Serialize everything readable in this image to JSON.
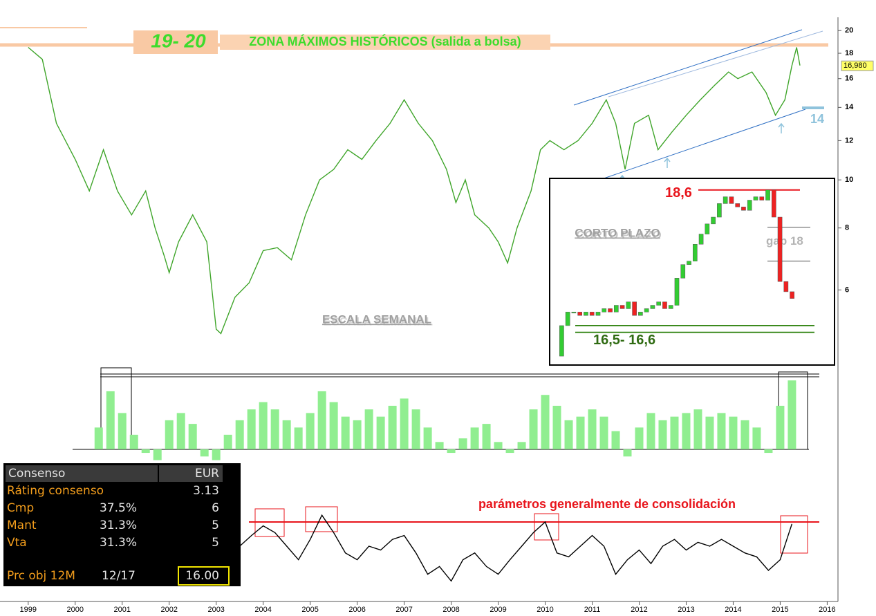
{
  "chart_data": [
    {
      "type": "line",
      "log_scale": true,
      "color": "#3fa52a",
      "x": [
        1999.0,
        1999.3,
        1999.6,
        2000.0,
        2000.3,
        2000.6,
        2000.9,
        2001.2,
        2001.5,
        2001.7,
        2001.9,
        2002.0,
        2002.2,
        2002.5,
        2002.8,
        2003.0,
        2003.1,
        2003.4,
        2003.7,
        2004.0,
        2004.3,
        2004.6,
        2004.9,
        2005.2,
        2005.5,
        2005.8,
        2006.1,
        2006.4,
        2006.7,
        2007.0,
        2007.3,
        2007.6,
        2007.9,
        2008.1,
        2008.3,
        2008.5,
        2008.8,
        2009.0,
        2009.2,
        2009.4,
        2009.7,
        2009.9,
        2010.1,
        2010.4,
        2010.7,
        2011.0,
        2011.3,
        2011.5,
        2011.7,
        2011.9,
        2012.2,
        2012.4,
        2012.7,
        2013.0,
        2013.3,
        2013.6,
        2013.9,
        2014.1,
        2014.4,
        2014.7,
        2014.9,
        2015.1,
        2015.25,
        2015.35,
        2015.42
      ],
      "values": [
        18.5,
        17.5,
        13,
        11,
        9.5,
        11.5,
        9.5,
        8.5,
        9.5,
        8,
        7,
        6.5,
        7.5,
        8.5,
        7.5,
        5,
        4.9,
        5.8,
        6.2,
        7.2,
        7.3,
        6.9,
        8.5,
        10,
        10.5,
        11.5,
        11,
        12,
        13,
        14.5,
        13,
        12,
        10.5,
        9,
        10,
        8.5,
        8,
        7.5,
        6.8,
        8,
        9.5,
        11.5,
        12,
        11.5,
        12,
        13,
        14.5,
        13,
        10.5,
        13,
        13.5,
        11.5,
        12.5,
        13.5,
        14.5,
        15.5,
        16.5,
        16,
        16.5,
        15,
        13.5,
        14.5,
        17,
        18.5,
        17
      ],
      "xlim": [
        1998.4,
        2016.2
      ],
      "xticks": [
        1999,
        2000,
        2001,
        2002,
        2003,
        2004,
        2005,
        2006,
        2007,
        2008,
        2009,
        2010,
        2011,
        2012,
        2013,
        2014,
        2015,
        2016
      ],
      "ylim": [
        4.5,
        21
      ],
      "yticks": [
        6,
        8,
        10,
        12,
        14,
        16,
        18,
        20
      ],
      "last_value": {
        "value": 16.98,
        "label": "16,980"
      },
      "annotations": [
        "19- 20",
        "ZONA MÁXIMOS HISTÓRICOS (salida a bolsa)",
        "ESCALA SEMANAL",
        "14"
      ]
    },
    {
      "type": "candlestick",
      "title": "CORTO PLAZO",
      "color_up": "#33cc33",
      "color_down": "#ee2222",
      "first_open": 16.15,
      "values": [
        16.6,
        16.8,
        16.8,
        16.75,
        16.8,
        16.75,
        16.8,
        16.85,
        16.8,
        16.9,
        16.85,
        16.95,
        16.75,
        16.8,
        16.85,
        16.9,
        16.95,
        16.85,
        16.9,
        17.3,
        17.5,
        17.55,
        17.8,
        17.95,
        18.1,
        18.2,
        18.4,
        18.5,
        18.4,
        18.35,
        18.3,
        18.45,
        18.5,
        18.45,
        18.6,
        18.2,
        17.25,
        17.1,
        17.0
      ],
      "ylim": [
        16.1,
        18.7
      ],
      "resistance": {
        "value": 18.6,
        "label": "18,6"
      },
      "support": [
        16.5,
        16.6
      ],
      "support_label": "16,5- 16,6",
      "gap": [
        18.05,
        17.55
      ],
      "gap_label": "gap 18"
    },
    {
      "type": "bar",
      "color": "#90ee90",
      "x": [
        2000.5,
        2000.75,
        2001.0,
        2001.25,
        2001.5,
        2001.75,
        2002.0,
        2002.25,
        2002.5,
        2002.75,
        2003.0,
        2003.25,
        2003.5,
        2003.75,
        2004.0,
        2004.25,
        2004.5,
        2004.75,
        2005.0,
        2005.25,
        2005.5,
        2005.75,
        2006.0,
        2006.25,
        2006.5,
        2006.75,
        2007.0,
        2007.25,
        2007.5,
        2007.75,
        2008.0,
        2008.25,
        2008.5,
        2008.75,
        2009.0,
        2009.25,
        2009.5,
        2009.75,
        2010.0,
        2010.25,
        2010.5,
        2010.75,
        2011.0,
        2011.25,
        2011.5,
        2011.75,
        2012.0,
        2012.25,
        2012.5,
        2012.75,
        2013.0,
        2013.25,
        2013.5,
        2013.75,
        2014.0,
        2014.25,
        2014.5,
        2014.75,
        2015.0,
        2015.25
      ],
      "values": [
        30,
        80,
        50,
        20,
        -5,
        -15,
        40,
        50,
        35,
        -10,
        -15,
        20,
        40,
        55,
        65,
        55,
        40,
        30,
        50,
        80,
        65,
        45,
        40,
        55,
        45,
        60,
        70,
        55,
        30,
        10,
        -5,
        15,
        30,
        35,
        10,
        -5,
        10,
        55,
        75,
        60,
        40,
        45,
        55,
        45,
        25,
        -10,
        30,
        50,
        40,
        45,
        50,
        55,
        45,
        50,
        45,
        40,
        30,
        -5,
        60,
        95
      ],
      "xlim": [
        1998.4,
        2016.2
      ],
      "ylim": [
        -25,
        100
      ]
    },
    {
      "type": "line",
      "color": "#000000",
      "x": [
        2003.5,
        2003.75,
        2004.0,
        2004.25,
        2004.5,
        2004.75,
        2005.0,
        2005.25,
        2005.5,
        2005.75,
        2006.0,
        2006.25,
        2006.5,
        2006.75,
        2007.0,
        2007.25,
        2007.5,
        2007.75,
        2008.0,
        2008.25,
        2008.5,
        2008.75,
        2009.0,
        2009.25,
        2009.5,
        2009.75,
        2010.0,
        2010.25,
        2010.5,
        2010.75,
        2011.0,
        2011.25,
        2011.5,
        2011.75,
        2012.0,
        2012.25,
        2012.5,
        2012.75,
        2013.0,
        2013.25,
        2013.5,
        2013.75,
        2014.0,
        2014.25,
        2014.5,
        2014.75,
        2015.0,
        2015.25
      ],
      "values": [
        50,
        61,
        71,
        64,
        50,
        36,
        57,
        82,
        64,
        43,
        36,
        50,
        46,
        57,
        61,
        43,
        21,
        29,
        14,
        36,
        43,
        29,
        21,
        36,
        50,
        64,
        75,
        43,
        39,
        50,
        61,
        50,
        21,
        36,
        46,
        32,
        50,
        57,
        46,
        54,
        50,
        57,
        50,
        43,
        39,
        25,
        36,
        73
      ],
      "xlim": [
        1998.4,
        2016.2
      ],
      "ylim": [
        0,
        100
      ],
      "threshold": 75,
      "threshold_color": "#e8141b",
      "annotation": "parámetros generalmente de consolidación"
    }
  ],
  "table": {
    "header": [
      "Consenso",
      "EUR"
    ],
    "rows": [
      [
        "Ráting consenso",
        "3.13"
      ],
      [
        "Cmp",
        "37.5%",
        "6"
      ],
      [
        "Mant",
        "31.3%",
        "5"
      ],
      [
        "Vta",
        "31.3%",
        "5"
      ],
      [
        "Prc obj 12M",
        "12/17",
        "16.00"
      ]
    ]
  }
}
